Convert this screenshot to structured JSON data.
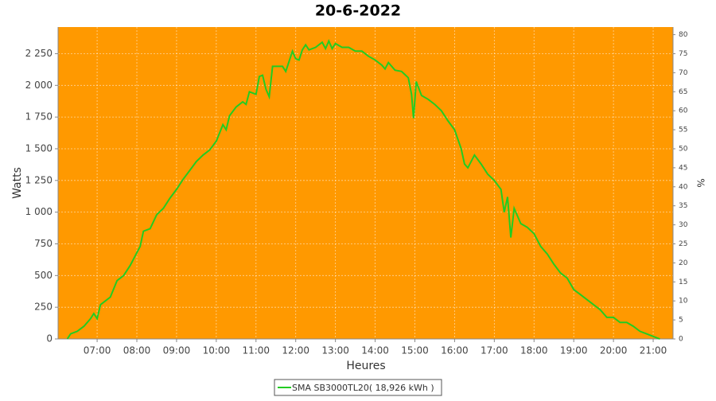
{
  "chart_data": {
    "type": "line",
    "title": "20-6-2022",
    "xlabel": "Heures",
    "ylabel": "Watts",
    "y2label": "%",
    "background": "#ff9900",
    "grid": true,
    "legend": "bottom",
    "xlim": [
      "06:01",
      "21:30"
    ],
    "xticks": [
      "07:00",
      "08:00",
      "09:00",
      "10:00",
      "11:00",
      "12:00",
      "13:00",
      "14:00",
      "15:00",
      "16:00",
      "17:00",
      "18:00",
      "19:00",
      "20:00",
      "21:00"
    ],
    "ylim": [
      0,
      2460
    ],
    "yticks": [
      0,
      250,
      500,
      750,
      {
        "value": 1000,
        "label": "1 000"
      },
      {
        "value": 1250,
        "label": "1 250"
      },
      {
        "value": 1500,
        "label": "1 500"
      },
      {
        "value": 1750,
        "label": "1 750"
      },
      {
        "value": 2000,
        "label": "2 000"
      },
      {
        "value": 2250,
        "label": "2 250"
      }
    ],
    "y2lim": [
      0,
      82
    ],
    "y2ticks": [
      0,
      5,
      10,
      15,
      20,
      25,
      30,
      35,
      40,
      45,
      50,
      55,
      60,
      65,
      70,
      75,
      80
    ],
    "x": [
      "06:15",
      "06:20",
      "06:30",
      "06:40",
      "06:50",
      "06:55",
      "07:00",
      "07:05",
      "07:10",
      "07:20",
      "07:30",
      "07:40",
      "07:50",
      "08:00",
      "08:05",
      "08:10",
      "08:20",
      "08:30",
      "08:40",
      "08:50",
      "09:00",
      "09:10",
      "09:20",
      "09:30",
      "09:40",
      "09:50",
      "10:00",
      "10:10",
      "10:15",
      "10:20",
      "10:30",
      "10:40",
      "10:45",
      "10:50",
      "11:00",
      "11:05",
      "11:10",
      "11:15",
      "11:20",
      "11:25",
      "11:40",
      "11:45",
      "11:55",
      "12:00",
      "12:05",
      "12:10",
      "12:15",
      "12:20",
      "12:30",
      "12:40",
      "12:45",
      "12:50",
      "12:55",
      "13:00",
      "13:10",
      "13:20",
      "13:30",
      "13:40",
      "13:50",
      "14:00",
      "14:10",
      "14:15",
      "14:20",
      "14:30",
      "14:40",
      "14:50",
      "14:55",
      "14:58",
      "15:02",
      "15:10",
      "15:20",
      "15:30",
      "15:40",
      "15:50",
      "16:00",
      "16:10",
      "16:15",
      "16:20",
      "16:30",
      "16:40",
      "16:50",
      "17:00",
      "17:10",
      "17:15",
      "17:20",
      "17:25",
      "17:30",
      "17:40",
      "17:50",
      "18:00",
      "18:10",
      "18:20",
      "18:30",
      "18:40",
      "18:50",
      "19:00",
      "19:10",
      "19:20",
      "19:30",
      "19:40",
      "19:50",
      "20:00",
      "20:10",
      "20:20",
      "20:30",
      "20:40",
      "20:50",
      "21:00",
      "21:10"
    ],
    "series": [
      {
        "name": "SMA SB3000TL20( 18,926 kWh )",
        "color": "#22cc22",
        "values": [
          0,
          40,
          60,
          100,
          160,
          200,
          160,
          270,
          290,
          330,
          460,
          500,
          580,
          680,
          730,
          850,
          870,
          980,
          1030,
          1110,
          1180,
          1260,
          1330,
          1400,
          1450,
          1490,
          1560,
          1690,
          1650,
          1760,
          1830,
          1870,
          1850,
          1950,
          1930,
          2070,
          2080,
          1970,
          1910,
          2150,
          2150,
          2110,
          2270,
          2210,
          2200,
          2280,
          2320,
          2280,
          2300,
          2340,
          2290,
          2350,
          2290,
          2330,
          2300,
          2300,
          2270,
          2270,
          2230,
          2200,
          2160,
          2130,
          2180,
          2120,
          2110,
          2060,
          1930,
          1740,
          2030,
          1920,
          1890,
          1850,
          1800,
          1720,
          1650,
          1500,
          1380,
          1350,
          1450,
          1380,
          1300,
          1250,
          1180,
          1000,
          1120,
          800,
          1030,
          910,
          880,
          830,
          730,
          670,
          590,
          520,
          480,
          390,
          350,
          310,
          270,
          230,
          170,
          170,
          130,
          130,
          100,
          60,
          40,
          20,
          0
        ]
      }
    ]
  }
}
